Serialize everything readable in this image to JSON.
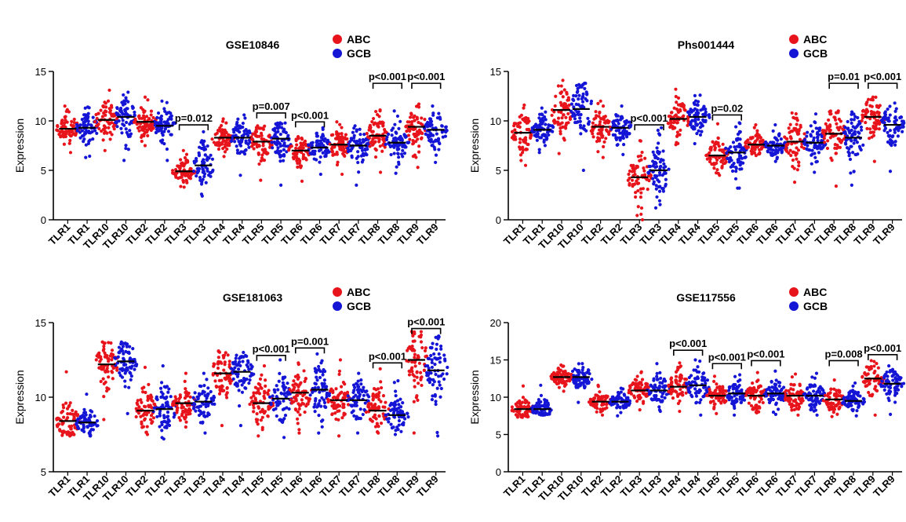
{
  "colors": {
    "ABC": "#e8141c",
    "GCB": "#1515d6",
    "axis": "#000000",
    "median": "#000000"
  },
  "chart_data": [
    {
      "type": "scatter",
      "title": "GSE10846",
      "ylabel": "Expression",
      "xlabel": "",
      "ylim": [
        0,
        15
      ],
      "yticks": [
        "0",
        "5",
        "10",
        "15"
      ],
      "legend": [
        {
          "name": "ABC",
          "color": "#e8141c"
        },
        {
          "name": "GCB",
          "color": "#1515d6"
        }
      ],
      "legend_position": "top-right",
      "categories": [
        "TLR1",
        "TLR1",
        "TLR10",
        "TLR10",
        "TLR2",
        "TLR2",
        "TLR3",
        "TLR3",
        "TLR4",
        "TLR4",
        "TLR5",
        "TLR5",
        "TLR6",
        "TLR6",
        "TLR7",
        "TLR7",
        "TLR8",
        "TLR8",
        "TLR9",
        "TLR9"
      ],
      "groups": [
        "ABC",
        "GCB",
        "ABC",
        "GCB",
        "ABC",
        "GCB",
        "ABC",
        "GCB",
        "ABC",
        "GCB",
        "ABC",
        "GCB",
        "ABC",
        "GCB",
        "ABC",
        "GCB",
        "ABC",
        "GCB",
        "ABC",
        "GCB"
      ],
      "medians": [
        9.2,
        9.3,
        10.1,
        10.4,
        9.9,
        9.5,
        4.9,
        5.5,
        8.3,
        8.3,
        7.9,
        8.2,
        7.0,
        7.3,
        7.6,
        7.5,
        8.5,
        7.8,
        9.4,
        9.1
      ],
      "ranges": [
        [
          6.8,
          11.5
        ],
        [
          6.3,
          11.4
        ],
        [
          7.0,
          13.1
        ],
        [
          6.0,
          12.9
        ],
        [
          7.5,
          12.4
        ],
        [
          6.0,
          12.0
        ],
        [
          3.3,
          7.0
        ],
        [
          2.4,
          8.9
        ],
        [
          6.4,
          10.2
        ],
        [
          4.5,
          10.6
        ],
        [
          4.0,
          9.5
        ],
        [
          3.5,
          9.8
        ],
        [
          3.9,
          8.4
        ],
        [
          4.6,
          9.3
        ],
        [
          4.6,
          9.9
        ],
        [
          3.5,
          9.5
        ],
        [
          4.8,
          11.1
        ],
        [
          4.7,
          11.0
        ],
        [
          5.3,
          11.7
        ],
        [
          5.8,
          11.5
        ]
      ],
      "annotations": [
        {
          "text": "p=0.012",
          "from": 6,
          "to": 7,
          "y": 9.6
        },
        {
          "text": "p=0.007",
          "from": 10,
          "to": 11,
          "y": 10.8
        },
        {
          "text": "p<0.001",
          "from": 12,
          "to": 13,
          "y": 9.9
        },
        {
          "text": "p<0.001",
          "from": 16,
          "to": 17,
          "y": 13.8
        },
        {
          "text": "p<0.001",
          "from": 18,
          "to": 19,
          "y": 13.8
        }
      ]
    },
    {
      "type": "scatter",
      "title": "Phs001444",
      "ylabel": "Expression",
      "xlabel": "",
      "ylim": [
        0,
        15
      ],
      "yticks": [
        "0",
        "5",
        "10",
        "15"
      ],
      "legend": [
        {
          "name": "ABC",
          "color": "#e8141c"
        },
        {
          "name": "GCB",
          "color": "#1515d6"
        }
      ],
      "legend_position": "top-right",
      "categories": [
        "TLR1",
        "TLR1",
        "TLR10",
        "TLR10",
        "TLR2",
        "TLR2",
        "TLR3",
        "TLR3",
        "TLR4",
        "TLR4",
        "TLR5",
        "TLR5",
        "TLR6",
        "TLR6",
        "TLR7",
        "TLR7",
        "TLR8",
        "TLR8",
        "TLR9",
        "TLR9"
      ],
      "groups": [
        "ABC",
        "GCB",
        "ABC",
        "GCB",
        "ABC",
        "GCB",
        "ABC",
        "GCB",
        "ABC",
        "GCB",
        "ABC",
        "GCB",
        "ABC",
        "GCB",
        "ABC",
        "GCB",
        "ABC",
        "GCB",
        "ABC",
        "GCB"
      ],
      "medians": [
        8.8,
        9.1,
        11.1,
        11.2,
        9.4,
        9.3,
        4.3,
        5.0,
        10.2,
        10.4,
        6.5,
        6.8,
        7.6,
        7.5,
        7.9,
        7.8,
        8.7,
        8.3,
        10.4,
        9.6
      ],
      "ranges": [
        [
          5.5,
          11.6
        ],
        [
          6.8,
          11.3
        ],
        [
          6.7,
          14.1
        ],
        [
          5.0,
          13.8
        ],
        [
          6.3,
          12.0
        ],
        [
          6.6,
          11.5
        ],
        [
          0.0,
          8.0
        ],
        [
          1.2,
          9.3
        ],
        [
          7.6,
          13.2
        ],
        [
          7.7,
          12.6
        ],
        [
          4.5,
          9.7
        ],
        [
          3.2,
          9.8
        ],
        [
          6.5,
          9.6
        ],
        [
          5.9,
          9.6
        ],
        [
          3.8,
          10.8
        ],
        [
          4.8,
          10.7
        ],
        [
          3.4,
          11.0
        ],
        [
          3.5,
          10.9
        ],
        [
          5.9,
          12.4
        ],
        [
          4.9,
          11.8
        ]
      ],
      "annotations": [
        {
          "text": "p<0.001",
          "from": 6,
          "to": 7,
          "y": 9.6
        },
        {
          "text": "p=0.02",
          "from": 10,
          "to": 11,
          "y": 10.6
        },
        {
          "text": "p=0.01",
          "from": 16,
          "to": 17,
          "y": 13.8
        },
        {
          "text": "p<0.001",
          "from": 18,
          "to": 19,
          "y": 13.8
        }
      ]
    },
    {
      "type": "scatter",
      "title": "GSE181063",
      "ylabel": "Expression",
      "xlabel": "",
      "ylim": [
        5,
        15
      ],
      "yticks": [
        "5",
        "10",
        "15"
      ],
      "legend": [
        {
          "name": "ABC",
          "color": "#e8141c"
        },
        {
          "name": "GCB",
          "color": "#1515d6"
        }
      ],
      "legend_position": "top-right",
      "categories": [
        "TLR1",
        "TLR1",
        "TLR10",
        "TLR10",
        "TLR2",
        "TLR2",
        "TLR3",
        "TLR3",
        "TLR4",
        "TLR4",
        "TLR5",
        "TLR5",
        "TLR6",
        "TLR6",
        "TLR7",
        "TLR7",
        "TLR8",
        "TLR8",
        "TLR9",
        "TLR9"
      ],
      "groups": [
        "ABC",
        "GCB",
        "ABC",
        "GCB",
        "ABC",
        "GCB",
        "ABC",
        "GCB",
        "ABC",
        "GCB",
        "ABC",
        "GCB",
        "ABC",
        "GCB",
        "ABC",
        "GCB",
        "ABC",
        "GCB",
        "ABC",
        "GCB"
      ],
      "medians": [
        8.4,
        8.3,
        12.2,
        12.4,
        9.1,
        9.2,
        9.6,
        9.7,
        11.6,
        11.7,
        9.6,
        9.9,
        10.3,
        10.5,
        9.8,
        9.8,
        9.1,
        8.8,
        12.5,
        11.8
      ],
      "ranges": [
        [
          7.4,
          11.7
        ],
        [
          7.4,
          10.2
        ],
        [
          8.5,
          13.7
        ],
        [
          8.9,
          13.7
        ],
        [
          7.5,
          12.0
        ],
        [
          7.2,
          12.1
        ],
        [
          8.0,
          11.6
        ],
        [
          7.6,
          11.6
        ],
        [
          8.1,
          13.1
        ],
        [
          8.1,
          13.0
        ],
        [
          7.4,
          12.1
        ],
        [
          7.3,
          12.5
        ],
        [
          7.6,
          12.3
        ],
        [
          7.6,
          12.9
        ],
        [
          7.4,
          12.5
        ],
        [
          7.6,
          11.6
        ],
        [
          7.6,
          11.9
        ],
        [
          7.5,
          11.1
        ],
        [
          7.6,
          14.4
        ],
        [
          7.4,
          14.1
        ]
      ],
      "annotations": [
        {
          "text": "p<0.001",
          "from": 10,
          "to": 11,
          "y": 12.8
        },
        {
          "text": "p=0.001",
          "from": 12,
          "to": 13,
          "y": 13.3
        },
        {
          "text": "p<0.001",
          "from": 16,
          "to": 17,
          "y": 12.3
        },
        {
          "text": "p<0.001",
          "from": 18,
          "to": 19,
          "y": 14.6
        }
      ]
    },
    {
      "type": "scatter",
      "title": "GSE117556",
      "ylabel": "Expression",
      "xlabel": "",
      "ylim": [
        0,
        20
      ],
      "yticks": [
        "0",
        "5",
        "10",
        "15",
        "20"
      ],
      "legend": [
        {
          "name": "ABC",
          "color": "#e8141c"
        },
        {
          "name": "GCB",
          "color": "#1515d6"
        }
      ],
      "legend_position": "top-right",
      "categories": [
        "TLR1",
        "TLR1",
        "TLR10",
        "TLR10",
        "TLR2",
        "TLR2",
        "TLR3",
        "TLR3",
        "TLR4",
        "TLR4",
        "TLR5",
        "TLR5",
        "TLR6",
        "TLR6",
        "TLR7",
        "TLR7",
        "TLR8",
        "TLR8",
        "TLR9",
        "TLR9"
      ],
      "groups": [
        "ABC",
        "GCB",
        "ABC",
        "GCB",
        "ABC",
        "GCB",
        "ABC",
        "GCB",
        "ABC",
        "GCB",
        "ABC",
        "GCB",
        "ABC",
        "GCB",
        "ABC",
        "GCB",
        "ABC",
        "GCB",
        "ABC",
        "GCB"
      ],
      "medians": [
        8.4,
        8.4,
        12.7,
        12.7,
        9.4,
        9.4,
        10.9,
        10.9,
        11.4,
        11.6,
        10.2,
        10.5,
        10.2,
        10.5,
        10.2,
        10.2,
        9.7,
        9.5,
        12.5,
        11.8
      ],
      "ranges": [
        [
          7.3,
          11.5
        ],
        [
          7.6,
          11.6
        ],
        [
          10.8,
          14.3
        ],
        [
          9.3,
          14.5
        ],
        [
          7.6,
          11.6
        ],
        [
          7.5,
          11.2
        ],
        [
          8.3,
          13.4
        ],
        [
          8.1,
          14.5
        ],
        [
          8.1,
          14.6
        ],
        [
          7.6,
          15.0
        ],
        [
          7.8,
          12.8
        ],
        [
          7.6,
          13.0
        ],
        [
          7.9,
          13.3
        ],
        [
          7.7,
          13.5
        ],
        [
          7.6,
          13.1
        ],
        [
          7.6,
          13.2
        ],
        [
          7.4,
          12.3
        ],
        [
          7.5,
          11.9
        ],
        [
          7.6,
          14.9
        ],
        [
          7.7,
          14.2
        ]
      ],
      "annotations": [
        {
          "text": "p<0.001",
          "from": 8,
          "to": 9,
          "y": 16.3
        },
        {
          "text": "p<0.001",
          "from": 10,
          "to": 11,
          "y": 14.5
        },
        {
          "text": "p<0.001",
          "from": 12,
          "to": 13,
          "y": 14.9
        },
        {
          "text": "p=0.008",
          "from": 16,
          "to": 17,
          "y": 14.9
        },
        {
          "text": "p<0.001",
          "from": 18,
          "to": 19,
          "y": 15.7
        }
      ]
    }
  ]
}
